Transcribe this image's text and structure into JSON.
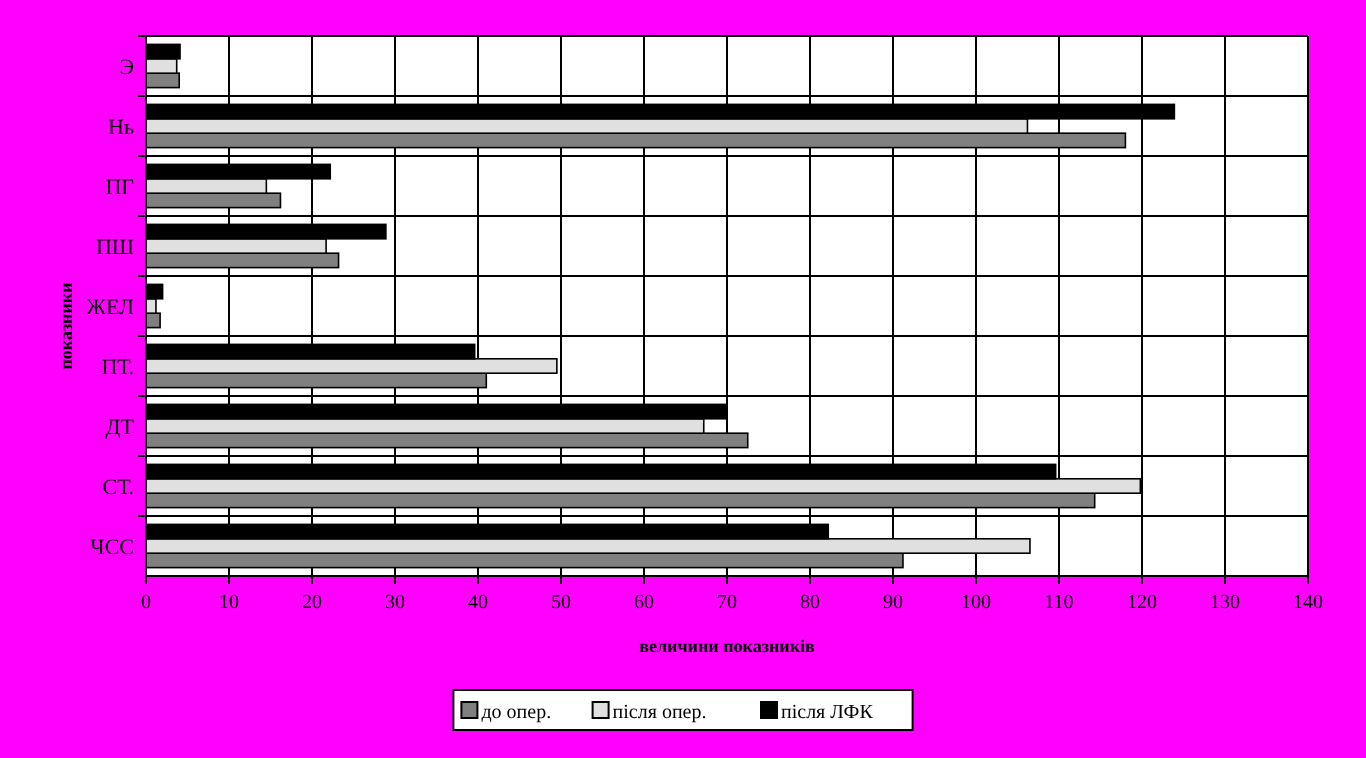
{
  "chart_data": {
    "type": "bar",
    "orientation": "horizontal",
    "xlabel": "величини показників",
    "ylabel": "показники",
    "categories": [
      "Э",
      "Нь",
      "ПГ",
      "ПШ",
      "ЖЕЛ",
      "ПТ.",
      "ДТ",
      "СТ.",
      "ЧСС"
    ],
    "series": [
      {
        "name": "до опер.",
        "color": "#808080",
        "values": [
          4.0,
          118.0,
          16.2,
          23.2,
          1.7,
          41.0,
          72.5,
          114.3,
          91.2
        ]
      },
      {
        "name": "після опер.",
        "color": "#e0e0e0",
        "values": [
          3.7,
          106.2,
          14.5,
          21.7,
          1.2,
          49.5,
          67.2,
          119.8,
          106.5
        ]
      },
      {
        "name": "після ЛФК",
        "color": "#000000",
        "values": [
          4.1,
          123.9,
          22.2,
          28.9,
          2.0,
          39.6,
          70.0,
          109.6,
          82.2
        ]
      }
    ],
    "xlim": [
      0,
      140
    ],
    "xticks": [
      0,
      10,
      20,
      30,
      40,
      50,
      60,
      70,
      80,
      90,
      100,
      110,
      120,
      130,
      140
    ],
    "grid": true,
    "legend": "bottom"
  }
}
